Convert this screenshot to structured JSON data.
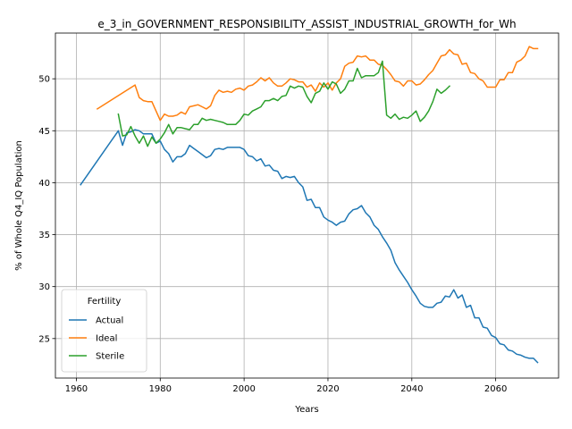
{
  "chart_data": {
    "type": "line",
    "title": "e_3_in_GOVERNMENT_RESPONSIBILITY_ASSIST_INDUSTRIAL_GROWTH_for_Wh",
    "xlabel": "Years",
    "ylabel": "% of Whole Q4_IQ Population",
    "xlim": [
      1955,
      2075
    ],
    "ylim": [
      21.2,
      54.4
    ],
    "xticks": [
      1960,
      1980,
      2000,
      2020,
      2040,
      2060
    ],
    "yticks": [
      25,
      30,
      35,
      40,
      45,
      50
    ],
    "grid": true,
    "legend": {
      "title": "Fertility",
      "placement": "lower-left"
    },
    "series": [
      {
        "name": "Actual",
        "color": "#1f77b4",
        "x": [
          1961,
          1970,
          1971,
          1972,
          1973,
          1974,
          1975,
          1976,
          1977,
          1978,
          1979,
          1980,
          1981,
          1982,
          1983,
          1984,
          1985,
          1986,
          1987,
          1988,
          1989,
          1990,
          1991,
          1992,
          1993,
          1994,
          1995,
          1996,
          1997,
          1998,
          1999,
          2000,
          2001,
          2002,
          2003,
          2004,
          2005,
          2006,
          2007,
          2008,
          2009,
          2010,
          2011,
          2012,
          2013,
          2014,
          2015,
          2016,
          2017,
          2018,
          2019,
          2020,
          2021,
          2022,
          2023,
          2024,
          2025,
          2026,
          2027,
          2028,
          2029,
          2030,
          2031,
          2032,
          2033,
          2034,
          2035,
          2036,
          2037,
          2038,
          2039,
          2040,
          2041,
          2042,
          2043,
          2044,
          2045,
          2046,
          2047,
          2048,
          2049,
          2050,
          2051,
          2052,
          2053,
          2054,
          2055,
          2056,
          2057,
          2058,
          2059,
          2060,
          2061,
          2062,
          2063,
          2064,
          2065,
          2066,
          2067,
          2068,
          2069,
          2070
        ],
        "values": [
          39.8,
          45.0,
          43.6,
          44.8,
          44.9,
          45.1,
          45.0,
          44.7,
          44.7,
          44.7,
          43.8,
          44.0,
          43.2,
          42.8,
          42.0,
          42.5,
          42.5,
          42.8,
          43.6,
          43.3,
          43.0,
          42.7,
          42.4,
          42.6,
          43.2,
          43.3,
          43.2,
          43.4,
          43.4,
          43.4,
          43.4,
          43.2,
          42.6,
          42.5,
          42.1,
          42.3,
          41.6,
          41.7,
          41.2,
          41.1,
          40.4,
          40.6,
          40.5,
          40.6,
          40.0,
          39.6,
          38.3,
          38.4,
          37.6,
          37.6,
          36.7,
          36.4,
          36.2,
          35.9,
          36.2,
          36.3,
          37.0,
          37.4,
          37.5,
          37.8,
          37.1,
          36.7,
          35.9,
          35.5,
          34.8,
          34.2,
          33.5,
          32.3,
          31.6,
          31.0,
          30.4,
          29.7,
          29.1,
          28.4,
          28.1,
          28.0,
          28.0,
          28.4,
          28.5,
          29.1,
          29.0,
          29.7,
          28.9,
          29.2,
          28.0,
          28.2,
          27.0,
          27.0,
          26.1,
          26.0,
          25.3,
          25.1,
          24.5,
          24.4,
          23.9,
          23.8,
          23.5,
          23.4,
          23.2,
          23.1,
          23.1,
          22.7
        ]
      },
      {
        "name": "Ideal",
        "color": "#ff7f0e",
        "x": [
          1965,
          1974,
          1975,
          1976,
          1977,
          1978,
          1979,
          1980,
          1981,
          1982,
          1983,
          1984,
          1985,
          1986,
          1987,
          1988,
          1989,
          1990,
          1991,
          1992,
          1993,
          1994,
          1995,
          1996,
          1997,
          1998,
          1999,
          2000,
          2001,
          2002,
          2003,
          2004,
          2005,
          2006,
          2007,
          2008,
          2009,
          2010,
          2011,
          2012,
          2013,
          2014,
          2015,
          2016,
          2017,
          2018,
          2019,
          2020,
          2021,
          2022,
          2023,
          2024,
          2025,
          2026,
          2027,
          2028,
          2029,
          2030,
          2031,
          2032,
          2033,
          2034,
          2035,
          2036,
          2037,
          2038,
          2039,
          2040,
          2041,
          2042,
          2043,
          2044,
          2045,
          2046,
          2047,
          2048,
          2049,
          2050,
          2051,
          2052,
          2053,
          2054,
          2055,
          2056,
          2057,
          2058,
          2059,
          2060,
          2061,
          2062,
          2063,
          2064,
          2065,
          2066,
          2067,
          2068,
          2069,
          2070
        ],
        "values": [
          47.1,
          49.4,
          48.2,
          47.9,
          47.8,
          47.8,
          46.9,
          46.0,
          46.6,
          46.4,
          46.4,
          46.5,
          46.8,
          46.6,
          47.3,
          47.4,
          47.5,
          47.3,
          47.1,
          47.4,
          48.4,
          48.9,
          48.7,
          48.8,
          48.7,
          49.0,
          49.1,
          48.9,
          49.3,
          49.4,
          49.7,
          50.1,
          49.8,
          50.1,
          49.6,
          49.3,
          49.3,
          49.6,
          50.0,
          49.9,
          49.7,
          49.7,
          49.2,
          49.4,
          48.8,
          49.6,
          49.2,
          49.6,
          48.9,
          49.6,
          50.0,
          51.2,
          51.5,
          51.6,
          52.2,
          52.1,
          52.2,
          51.8,
          51.8,
          51.4,
          51.3,
          50.9,
          50.4,
          49.8,
          49.7,
          49.3,
          49.8,
          49.8,
          49.4,
          49.5,
          49.9,
          50.4,
          50.8,
          51.5,
          52.2,
          52.3,
          52.8,
          52.4,
          52.3,
          51.4,
          51.5,
          50.6,
          50.5,
          50.0,
          49.8,
          49.2,
          49.2,
          49.2,
          49.9,
          49.9,
          50.6,
          50.6,
          51.6,
          51.8,
          52.2,
          53.1,
          52.9,
          52.9
        ]
      },
      {
        "name": "Sterile",
        "color": "#2ca02c",
        "x": [
          1970,
          1971,
          1972,
          1973,
          1974,
          1975,
          1976,
          1977,
          1978,
          1979,
          1980,
          1981,
          1982,
          1983,
          1984,
          1985,
          1986,
          1987,
          1988,
          1989,
          1990,
          1991,
          1992,
          1993,
          1994,
          1995,
          1996,
          1997,
          1998,
          1999,
          2000,
          2001,
          2002,
          2003,
          2004,
          2005,
          2006,
          2007,
          2008,
          2009,
          2010,
          2011,
          2012,
          2013,
          2014,
          2015,
          2016,
          2017,
          2018,
          2019,
          2020,
          2021,
          2022,
          2023,
          2024,
          2025,
          2026,
          2027,
          2028,
          2029,
          2030,
          2031,
          2032,
          2033,
          2034,
          2035,
          2036,
          2037,
          2038,
          2039,
          2040,
          2041,
          2042,
          2043,
          2044,
          2045,
          2046,
          2047,
          2048,
          2049
        ],
        "values": [
          46.6,
          44.5,
          44.6,
          45.4,
          44.5,
          43.8,
          44.5,
          43.5,
          44.4,
          43.8,
          44.2,
          44.8,
          45.6,
          44.7,
          45.3,
          45.3,
          45.2,
          45.1,
          45.6,
          45.6,
          46.2,
          46.0,
          46.1,
          46.0,
          45.9,
          45.8,
          45.6,
          45.6,
          45.6,
          46.0,
          46.6,
          46.5,
          46.9,
          47.1,
          47.3,
          47.9,
          47.9,
          48.1,
          47.9,
          48.3,
          48.4,
          49.3,
          49.1,
          49.3,
          49.2,
          48.3,
          47.7,
          48.6,
          48.8,
          49.6,
          49.0,
          49.7,
          49.5,
          48.6,
          49.0,
          49.8,
          49.8,
          51.0,
          50.1,
          50.3,
          50.3,
          50.3,
          50.6,
          51.7,
          46.5,
          46.2,
          46.6,
          46.1,
          46.3,
          46.2,
          46.5,
          46.9,
          45.9,
          46.3,
          46.9,
          47.8,
          49.0,
          48.6,
          48.9,
          49.3
        ]
      }
    ]
  }
}
